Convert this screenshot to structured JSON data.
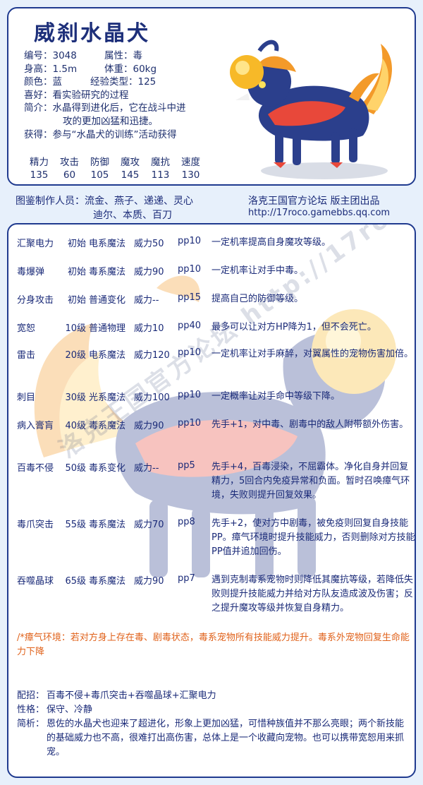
{
  "pet": {
    "name": "威刹水晶犬",
    "number_label": "编号：",
    "number": "3048",
    "attribute_label": "属性：",
    "attribute": "毒",
    "height_label": "身高：",
    "height": "1.5m",
    "weight_label": "体重：",
    "weight": "60kg",
    "color_label": "颜色：",
    "color": "蓝",
    "exp_label": "经验类型：",
    "exp": "125",
    "hobby_label": "喜好：",
    "hobby": "看实验研究的过程",
    "intro_label": "简介：",
    "intro_line1": "水晶得到进化后，它在战斗中进",
    "intro_line2": "攻的更加凶猛和迅捷。",
    "obtain_label": "获得：",
    "obtain": "参与“水晶犬的训练”活动获得"
  },
  "stats": {
    "headers": [
      "精力",
      "攻击",
      "防御",
      "魔攻",
      "魔抗",
      "速度"
    ],
    "values": [
      "135",
      "60",
      "105",
      "145",
      "113",
      "130"
    ]
  },
  "credits": {
    "line1": "图鉴制作人员：流金、燕子、递递、灵心",
    "line2": "迪尔、本质、百刀",
    "forum": "洛克王国官方论坛 版主团出品",
    "url": "http://17roco.gamebbs.qq.com"
  },
  "skills": [
    {
      "name": "汇聚电力",
      "level": "初始",
      "type": "电系魔法",
      "power": "威力50",
      "pp": "pp10",
      "desc": "一定机率提高自身魔攻等级。"
    },
    {
      "name": "毒爆弹",
      "level": "初始",
      "type": "毒系魔法",
      "power": "威力90",
      "pp": "pp10",
      "desc": "一定机率让对手中毒。"
    },
    {
      "name": "分身攻击",
      "level": "初始",
      "type": "普通变化",
      "power": "威力--",
      "pp": "pp15",
      "desc": "提高自己的防御等级。"
    },
    {
      "name": "宽恕",
      "level": "10级",
      "type": "普通物理",
      "power": "威力10",
      "pp": "pp40",
      "desc": "最多可以让对方HP降为1，但不会死亡。"
    },
    {
      "name": "雷击",
      "level": "20级",
      "type": "电系魔法",
      "power": "威力120",
      "pp": "pp10",
      "desc": "一定机率让对手麻醉，对翼属性的宠物伤害加倍。"
    },
    {
      "name": "刺目",
      "level": "30级",
      "type": "光系魔法",
      "power": "威力100",
      "pp": "pp10",
      "desc": "一定概率让对手命中等级下降。"
    },
    {
      "name": "病入膏肓",
      "level": "40级",
      "type": "毒系魔法",
      "power": "威力90",
      "pp": "pp10",
      "desc": "先手+1，对中毒、剧毒中的敌人附带额外伤害。"
    },
    {
      "name": "百毒不侵",
      "level": "50级",
      "type": "毒系变化",
      "power": "威力--",
      "pp": "pp5",
      "desc": "先手+4，百毒浸染，不屈霸体。净化自身并回复精力，5回合内免疫异常和负面。暂时召唤瘴气环境，失败则提升回复效果。"
    },
    {
      "name": "毒爪突击",
      "level": "55级",
      "type": "毒系魔法",
      "power": "威力70",
      "pp": "pp8",
      "desc": "先手+2，使对方中剧毒，被免疫则回复自身技能PP。瘴气环境时提升技能威力，否则删除对方技能PP值并追加回伤。"
    },
    {
      "name": "吞噬晶球",
      "level": "65级",
      "type": "毒系魔法",
      "power": "威力90",
      "pp": "pp7",
      "desc": "遇到克制毒系宠物时则降低其魔抗等级，若降低失败则提升技能威力并给对方队友造成波及伤害；反之提升魔攻等级并恢复自身精力。"
    }
  ],
  "environment": "/*瘴气环境：若对方身上存在毒、剧毒状态，毒系宠物所有技能威力提升。毒系外宠物回复生命能力下降",
  "footer": {
    "combo_label": "配招：",
    "combo": "百毒不侵+毒爪突击+吞噬晶球+汇聚电力",
    "nature_label": "性格：",
    "nature": "保守、冷静",
    "analysis_label": "简析：",
    "analysis": "恩佐的水晶犬也迎来了超进化，形象上更加凶猛，可惜种族值并不那么亮眼；两个新技能的基础威力也不高，很难打出高伤害，总体上是一个收藏向宠物。也可以携带宽恕用来抓宠。"
  },
  "watermark": "洛克王国官方论坛 http://17roco.gamebbs.qq.com 版主团出品",
  "colors": {
    "accent": "#1f3a8f",
    "text": "#1e2f6e",
    "env": "#e0621b",
    "background": "#e7f0fb"
  }
}
